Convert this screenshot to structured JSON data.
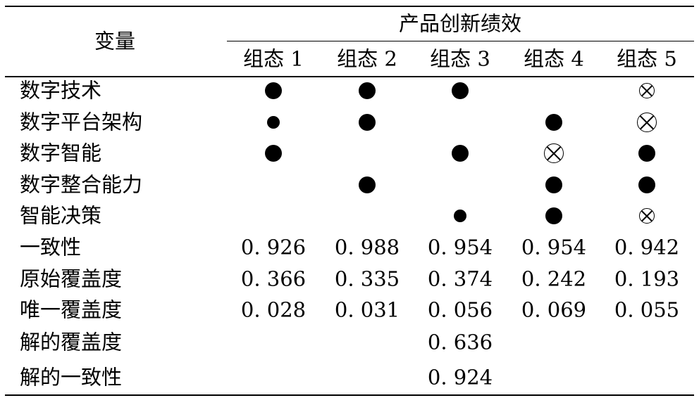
{
  "header": {
    "variable_label": "变量",
    "group_label": "产品创新绩效",
    "columns": [
      "组态 1",
      "组态 2",
      "组态 3",
      "组态 4",
      "组态 5"
    ]
  },
  "legend_symbols": {
    "core_present": "big-filled-circle",
    "peripheral_present": "small-filled-circle",
    "core_absent": "big-crossed-circle",
    "peripheral_absent": "small-crossed-circle",
    "blank": "don't care"
  },
  "condition_rows": [
    {
      "label": "数字技术",
      "cells": [
        "big",
        "big",
        "big",
        "",
        "ox-small"
      ]
    },
    {
      "label": "数字平台架构",
      "cells": [
        "small",
        "big",
        "",
        "big",
        "ox-big"
      ]
    },
    {
      "label": "数字智能",
      "cells": [
        "big",
        "",
        "big",
        "ox-big",
        "big"
      ]
    },
    {
      "label": "数字整合能力",
      "cells": [
        "",
        "big",
        "",
        "big",
        "big"
      ]
    },
    {
      "label": "智能决策",
      "cells": [
        "",
        "",
        "small",
        "big",
        "ox-small"
      ]
    }
  ],
  "metric_rows": [
    {
      "label": "一致性",
      "values": [
        "0. 926",
        "0. 988",
        "0. 954",
        "0. 954",
        "0. 942"
      ]
    },
    {
      "label": "原始覆盖度",
      "values": [
        "0. 366",
        "0. 335",
        "0. 374",
        "0. 242",
        "0. 193"
      ]
    },
    {
      "label": "唯一覆盖度",
      "values": [
        "0. 028",
        "0. 031",
        "0. 056",
        "0. 069",
        "0. 055"
      ]
    }
  ],
  "solution_rows": [
    {
      "label": "解的覆盖度",
      "value": "0. 636"
    },
    {
      "label": "解的一致性",
      "value": "0. 924"
    }
  ]
}
